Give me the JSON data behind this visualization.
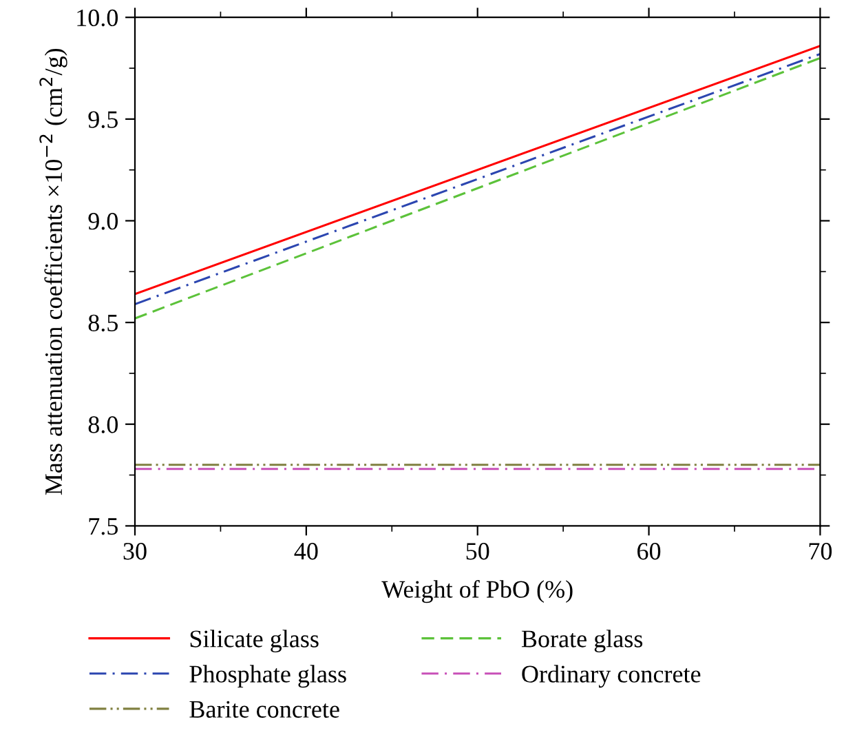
{
  "chart_data": {
    "type": "line",
    "xlabel": "Weight of PbO (%)",
    "ylabel": "Mass attenuation coefficients ×10$^{−2}$ (cm$^{2}$/g)",
    "x": [
      30,
      70
    ],
    "series": [
      {
        "name": "Silicate glass",
        "color": "#ff0000",
        "values": [
          8.64,
          9.86
        ],
        "line_style": "solid"
      },
      {
        "name": "Borate glass",
        "color": "#5cc23a",
        "values": [
          8.52,
          9.8
        ],
        "line_style": "dashed"
      },
      {
        "name": "Phosphate glass",
        "color": "#2c46b0",
        "values": [
          8.59,
          9.82
        ],
        "line_style": "dashdot"
      },
      {
        "name": "Ordinary concrete",
        "color": "#c850b8",
        "values": [
          7.78,
          7.78
        ],
        "line_style": "dashdot"
      },
      {
        "name": "Barite concrete",
        "color": "#808040",
        "values": [
          7.8,
          7.8
        ],
        "line_style": "dashdotdot"
      }
    ],
    "xlim": [
      30,
      70
    ],
    "xticks": [
      30,
      40,
      50,
      60,
      70
    ],
    "ylim": [
      7.5,
      10.0
    ],
    "yticks": [
      {
        "value": 7.5,
        "label": "7.5"
      },
      {
        "value": 8.0,
        "label": "8.0"
      },
      {
        "value": 8.5,
        "label": "8.5"
      },
      {
        "value": 9.0,
        "label": "9.0"
      },
      {
        "value": 9.5,
        "label": "9.5"
      },
      {
        "value": 10.0,
        "label": "10.0"
      }
    ],
    "grid": false,
    "legend": "bottom",
    "marker": "none"
  }
}
